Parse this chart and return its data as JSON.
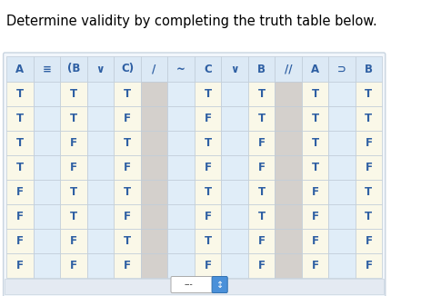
{
  "title": "Determine validity by completing the truth table below.",
  "headers": [
    "A",
    "≡",
    "(B",
    "∨",
    "C)",
    "/",
    "~",
    "C",
    "∨",
    "B",
    "//",
    "A",
    "⊃",
    "B"
  ],
  "col_count": 14,
  "rows": [
    [
      "T",
      "",
      "T",
      "",
      "T",
      "",
      "",
      "T",
      "",
      "T",
      "",
      "T",
      "",
      "T"
    ],
    [
      "T",
      "",
      "T",
      "",
      "F",
      "",
      "",
      "F",
      "",
      "T",
      "",
      "T",
      "",
      "T"
    ],
    [
      "T",
      "",
      "F",
      "",
      "T",
      "",
      "",
      "T",
      "",
      "F",
      "",
      "T",
      "",
      "F"
    ],
    [
      "T",
      "",
      "F",
      "",
      "F",
      "",
      "",
      "F",
      "",
      "F",
      "",
      "T",
      "",
      "F"
    ],
    [
      "F",
      "",
      "T",
      "",
      "T",
      "",
      "",
      "T",
      "",
      "T",
      "",
      "F",
      "",
      "T"
    ],
    [
      "F",
      "",
      "T",
      "",
      "F",
      "",
      "",
      "F",
      "",
      "T",
      "",
      "F",
      "",
      "T"
    ],
    [
      "F",
      "",
      "F",
      "",
      "T",
      "",
      "",
      "T",
      "",
      "F",
      "",
      "F",
      "",
      "F"
    ],
    [
      "F",
      "",
      "F",
      "",
      "F",
      "",
      "",
      "F",
      "",
      "F",
      "",
      "F",
      "",
      "F"
    ]
  ],
  "col_bg": [
    "yellow",
    "light_blue",
    "yellow",
    "light_blue",
    "yellow",
    "gray",
    "light_blue",
    "yellow",
    "light_blue",
    "yellow",
    "gray",
    "yellow",
    "light_blue",
    "yellow"
  ],
  "color_yellow": "#faf8e8",
  "color_light_blue": "#e0edf8",
  "color_gray": "#d4d0cc",
  "color_header_bg": "#dce9f5",
  "text_color": "#2e5fa3",
  "outer_bg": "#ffffff",
  "font_size_title": 10.5,
  "font_size_header": 8.5,
  "font_size_cell": 8.5
}
